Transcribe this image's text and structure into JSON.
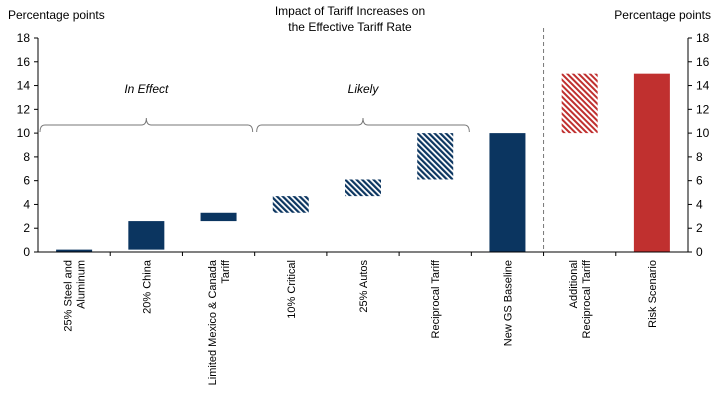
{
  "chart_data": {
    "type": "bar",
    "subtype": "waterfall",
    "title_lines": [
      "Impact of Tariff Increases on",
      "the Effective Tariff Rate"
    ],
    "ylabel_left": "Percentage points",
    "ylabel_right": "Percentage points",
    "ylim": [
      0,
      18
    ],
    "yticks": [
      0,
      2,
      4,
      6,
      8,
      10,
      12,
      14,
      16,
      18
    ],
    "grid": false,
    "groups": [
      {
        "label": "In Effect",
        "from": 0,
        "to": 2
      },
      {
        "label": "Likely",
        "from": 3,
        "to": 5
      }
    ],
    "bars": [
      {
        "label_lines": [
          "25% Steel and",
          "Aluminum"
        ],
        "base": 0,
        "top": 0.2,
        "style": "solid-navy"
      },
      {
        "label_lines": [
          "20% China"
        ],
        "base": 0.2,
        "top": 2.6,
        "style": "solid-navy"
      },
      {
        "label_lines": [
          "Limited Mexico & Canada",
          "Tariff"
        ],
        "base": 2.6,
        "top": 3.3,
        "style": "solid-navy"
      },
      {
        "label_lines": [
          "10% Critical"
        ],
        "base": 3.3,
        "top": 4.7,
        "style": "hatched-navy"
      },
      {
        "label_lines": [
          "25% Autos"
        ],
        "base": 4.7,
        "top": 6.1,
        "style": "hatched-navy"
      },
      {
        "label_lines": [
          "Reciprocal Tariff"
        ],
        "base": 6.1,
        "top": 10.0,
        "style": "hatched-navy"
      },
      {
        "label_lines": [
          "New GS Baseline"
        ],
        "base": 0,
        "top": 10.0,
        "style": "solid-navy"
      },
      {
        "label_lines": [
          "Additional",
          "Reciprocal Tariff"
        ],
        "base": 10.0,
        "top": 15.0,
        "style": "hatched-red"
      },
      {
        "label_lines": [
          "Risk Scenario"
        ],
        "base": 0,
        "top": 15.0,
        "style": "solid-red"
      }
    ],
    "separator_after_index": 6,
    "colors": {
      "navy": "#0b3560",
      "red": "#c0302f"
    }
  }
}
